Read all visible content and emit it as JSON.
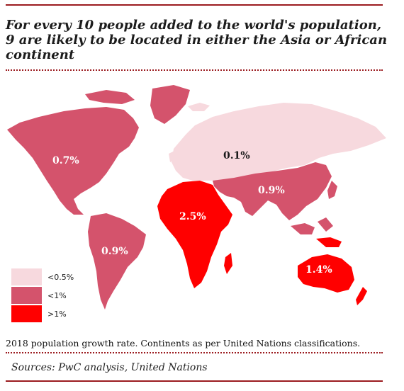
{
  "title": "For every 10 people added to the world's population, 9 are likely to be located in either the Asia or African continent",
  "colors": {
    "rule": "#9b1b1f",
    "low": "#f7d9de",
    "mid": "#d4536c",
    "high": "#ff0000"
  },
  "regions": [
    {
      "name": "North America",
      "value": "0.7%",
      "category": "mid"
    },
    {
      "name": "South America",
      "value": "0.9%",
      "category": "mid"
    },
    {
      "name": "Europe",
      "value": "0.1%",
      "category": "low"
    },
    {
      "name": "Asia",
      "value": "0.9%",
      "category": "mid"
    },
    {
      "name": "Africa",
      "value": "2.5%",
      "category": "high"
    },
    {
      "name": "Oceania",
      "value": "1.4%",
      "category": "high"
    }
  ],
  "legend": [
    {
      "label": "<0.5%",
      "color": "#f7d9de"
    },
    {
      "label": "<1%",
      "color": "#d4536c"
    },
    {
      "label": ">1%",
      "color": "#ff0000"
    }
  ],
  "note": "2018 population growth rate. Continents as per United Nations classifications.",
  "source": "Sources: PwC analysis, United Nations"
}
